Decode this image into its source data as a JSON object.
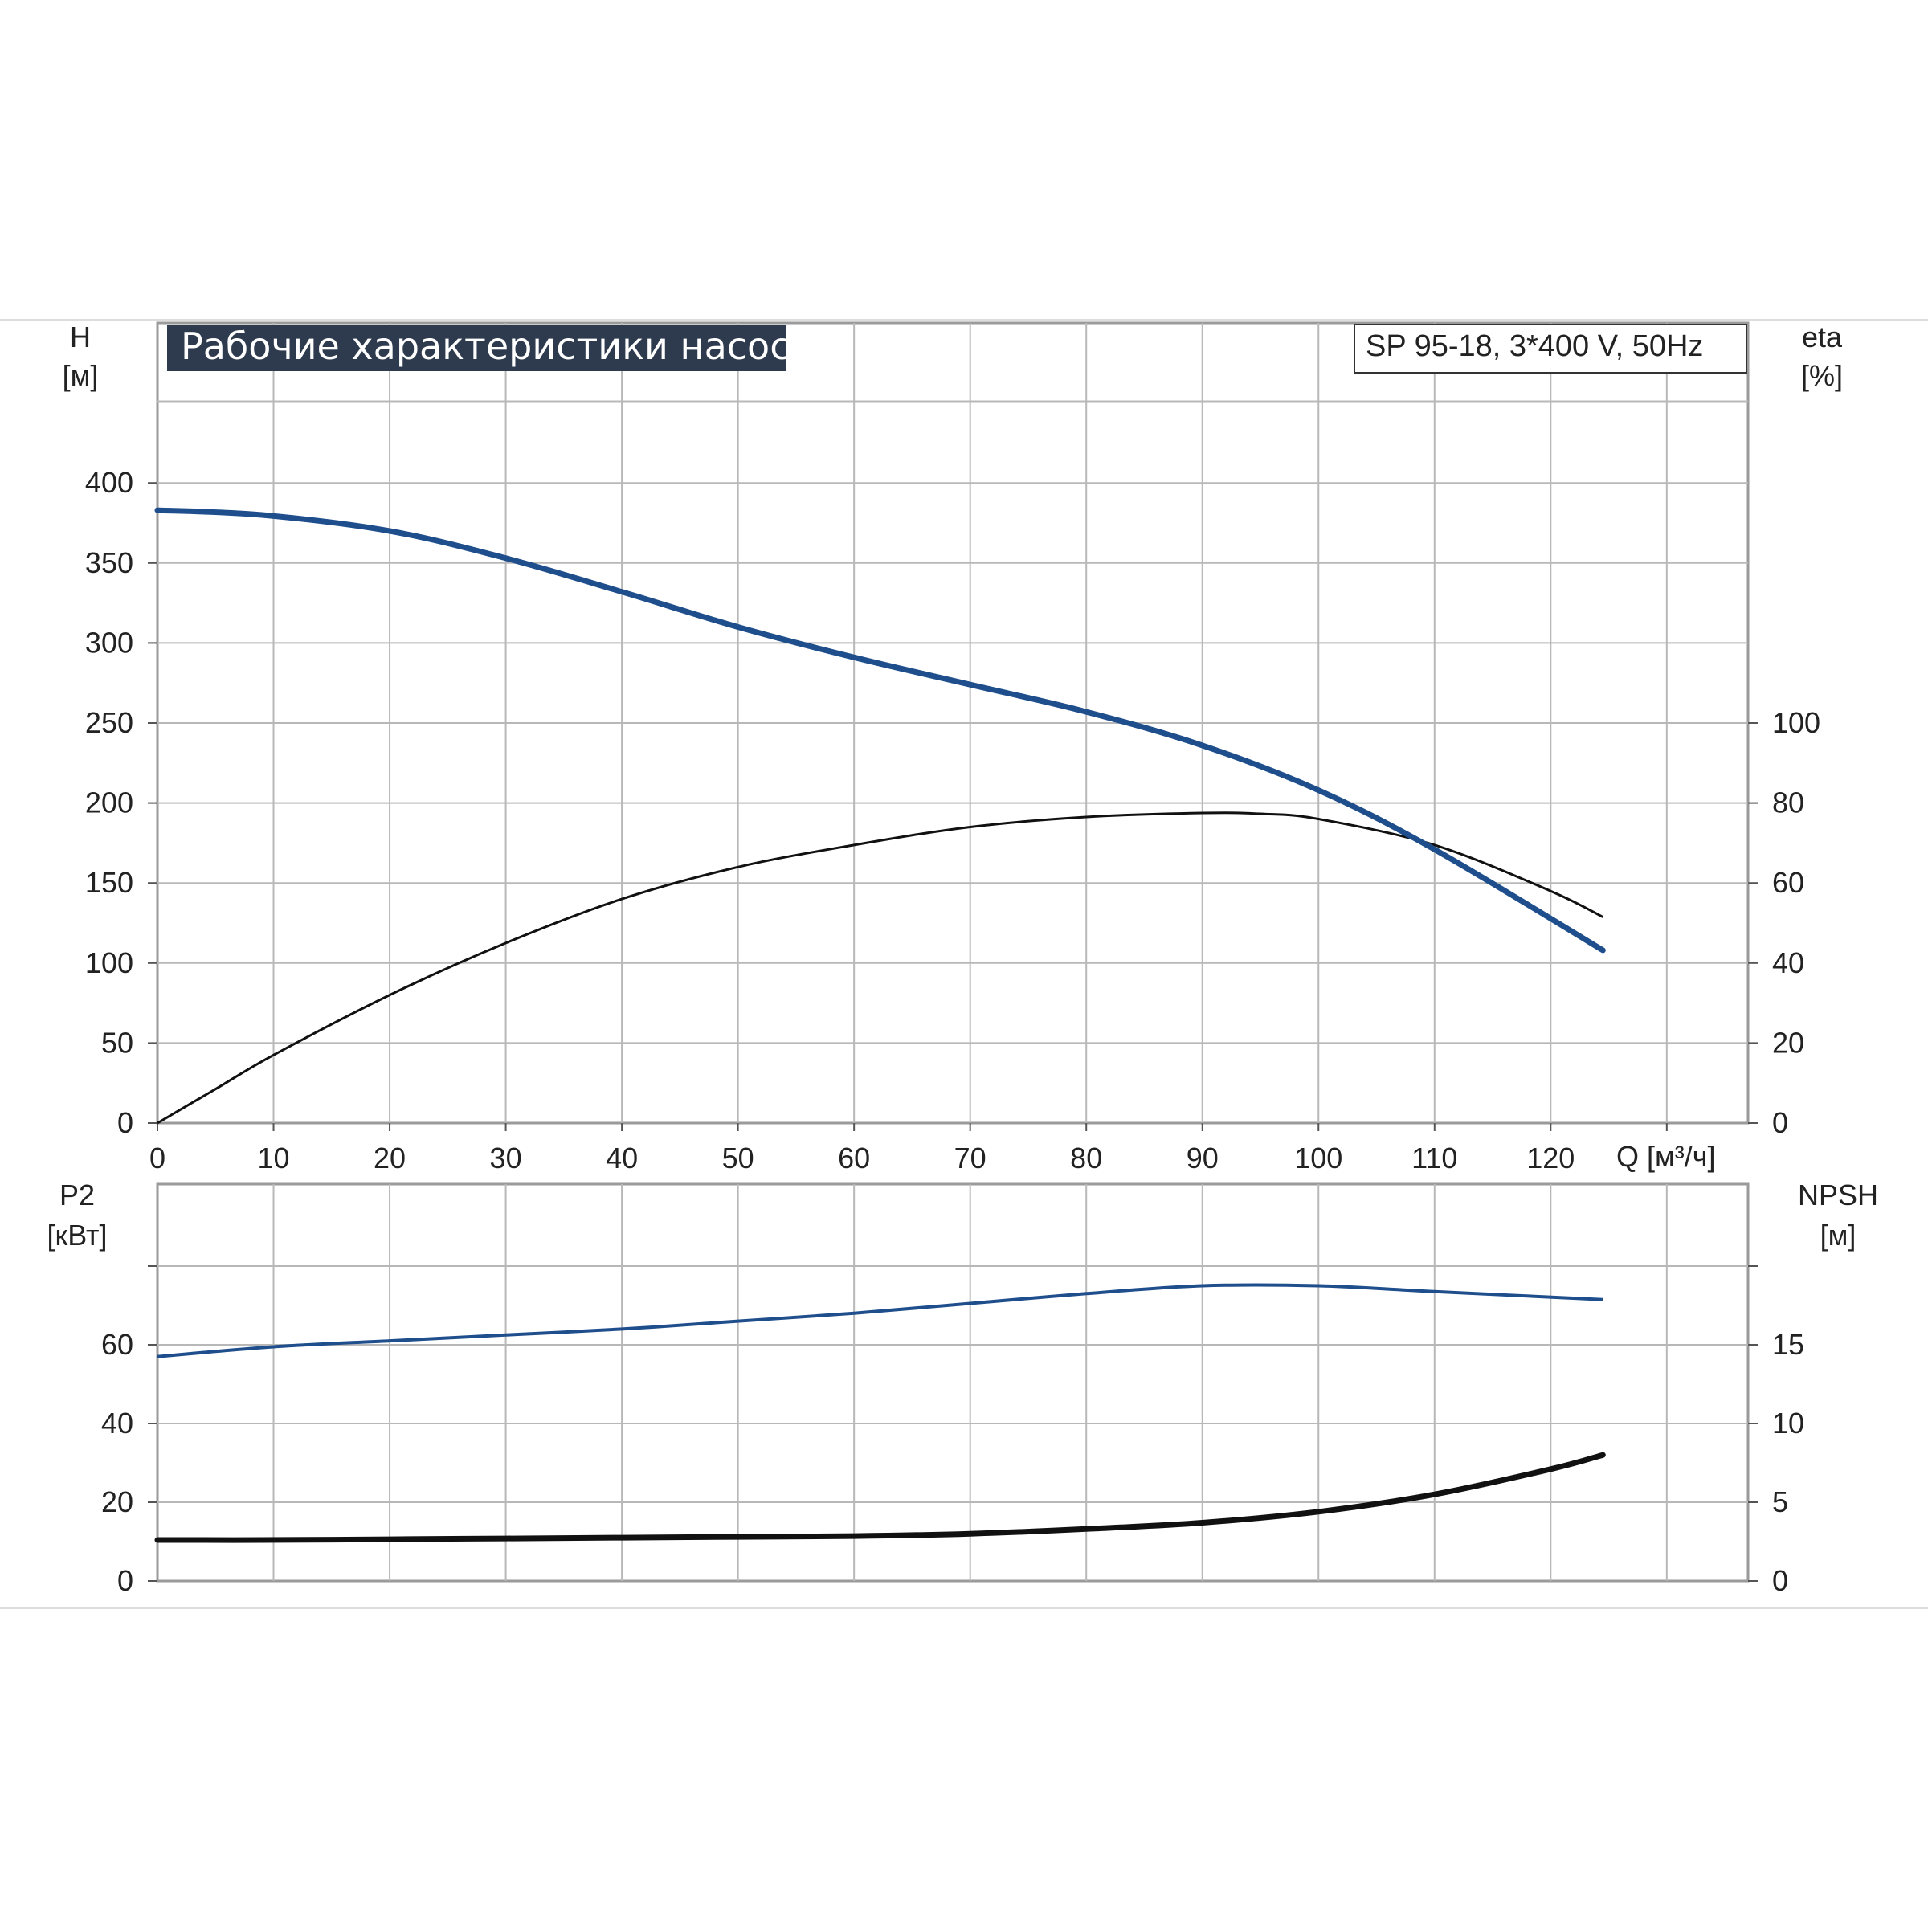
{
  "title": "Рабочие характеристики насоса",
  "model_label": "SP 95-18, 3*400 V, 50Hz",
  "colors": {
    "title_bg": "#2e3b4e",
    "grid": "#b8b8b8",
    "axis": "#555555",
    "head_curve": "#1f4e8c",
    "eta_curve": "#111111",
    "p2_curve": "#1f4e8c",
    "npsh_curve": "#111111"
  },
  "chart_data": [
    {
      "id": "upper",
      "type": "line",
      "title": "Рабочие характеристики насоса",
      "xlabel": "Q [м³/ч]",
      "x_ticks": [
        "0",
        "10",
        "20",
        "30",
        "40",
        "50",
        "60",
        "70",
        "80",
        "90",
        "100",
        "110",
        "120"
      ],
      "xlim": [
        0,
        137
      ],
      "grid": true,
      "left_axis": {
        "label_line1": "H",
        "label_line2": "[м]",
        "ylim": [
          0,
          500
        ],
        "ticks": [
          "0",
          "50",
          "100",
          "150",
          "200",
          "250",
          "300",
          "350",
          "400"
        ]
      },
      "right_axis": {
        "label_line1": "eta",
        "label_line2": "[%]",
        "ylim": [
          0,
          200
        ],
        "ticks": [
          "0",
          "20",
          "40",
          "60",
          "80",
          "100"
        ]
      },
      "series": [
        {
          "key": "head",
          "axis": "left",
          "x": [
            0,
            9,
            20,
            30,
            40,
            50,
            60,
            70,
            80,
            90,
            100,
            110,
            124.5
          ],
          "y": [
            383,
            380,
            370,
            353,
            332,
            310,
            291,
            274,
            257,
            236,
            208,
            171,
            108
          ]
        },
        {
          "key": "efficiency",
          "axis": "right",
          "x": [
            0,
            5,
            10,
            20,
            30,
            40,
            50,
            60,
            70,
            80,
            90,
            95,
            100,
            110,
            120,
            124.5
          ],
          "y": [
            0,
            8.5,
            17,
            32,
            45,
            56,
            64,
            69.5,
            74,
            76.5,
            77.5,
            77.3,
            76,
            69.5,
            58,
            51.5
          ]
        }
      ]
    },
    {
      "id": "lower",
      "type": "line",
      "xlim": [
        0,
        137
      ],
      "grid": true,
      "left_axis": {
        "label_line1": "P2",
        "label_line2": "[кВт]",
        "ylim": [
          0,
          80
        ],
        "ticks": [
          "0",
          "20",
          "40",
          "60"
        ]
      },
      "right_axis": {
        "label_line1": "NPSH",
        "label_line2": "[м]",
        "ylim": [
          0,
          20
        ],
        "ticks": [
          "0",
          "5",
          "10",
          "15"
        ]
      },
      "series": [
        {
          "key": "p2",
          "axis": "left",
          "x": [
            0,
            10,
            20,
            30,
            40,
            50,
            60,
            70,
            80,
            90,
            100,
            110,
            124.5
          ],
          "y": [
            57,
            59.5,
            61,
            62.5,
            64,
            66,
            68,
            70.5,
            73,
            75,
            75,
            73.5,
            71.5
          ]
        },
        {
          "key": "npsh",
          "axis": "right",
          "x": [
            0,
            9,
            20,
            30,
            40,
            50,
            60,
            70,
            80,
            90,
            100,
            110,
            120,
            124.5
          ],
          "y": [
            2.6,
            2.6,
            2.65,
            2.7,
            2.75,
            2.8,
            2.85,
            3.0,
            3.3,
            3.7,
            4.4,
            5.5,
            7.1,
            8.0
          ]
        }
      ]
    }
  ]
}
